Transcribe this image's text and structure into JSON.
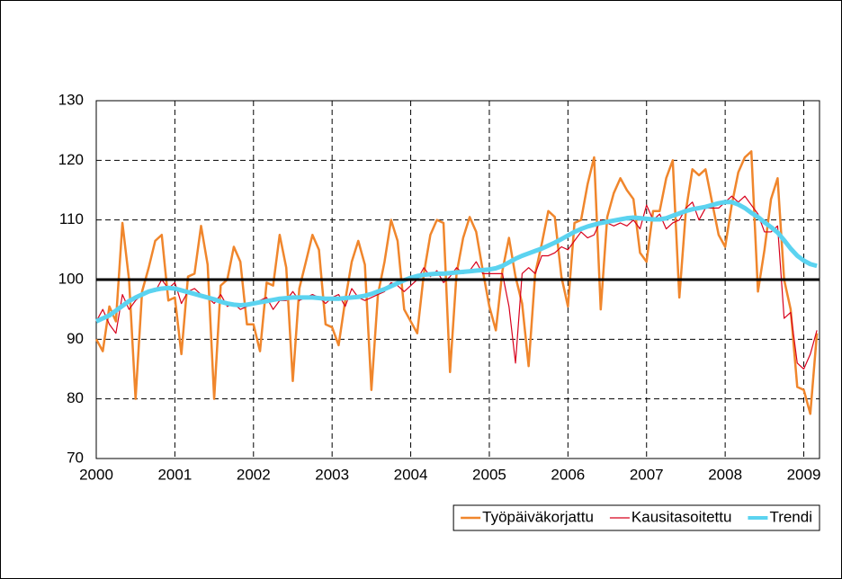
{
  "chart_data": {
    "type": "line",
    "x": [
      2000,
      2000.083,
      2000.167,
      2000.25,
      2000.333,
      2000.417,
      2000.5,
      2000.583,
      2000.667,
      2000.75,
      2000.833,
      2000.917,
      2001,
      2001.083,
      2001.167,
      2001.25,
      2001.333,
      2001.417,
      2001.5,
      2001.583,
      2001.667,
      2001.75,
      2001.833,
      2001.917,
      2002,
      2002.083,
      2002.167,
      2002.25,
      2002.333,
      2002.417,
      2002.5,
      2002.583,
      2002.667,
      2002.75,
      2002.833,
      2002.917,
      2003,
      2003.083,
      2003.167,
      2003.25,
      2003.333,
      2003.417,
      2003.5,
      2003.583,
      2003.667,
      2003.75,
      2003.833,
      2003.917,
      2004,
      2004.083,
      2004.167,
      2004.25,
      2004.333,
      2004.417,
      2004.5,
      2004.583,
      2004.667,
      2004.75,
      2004.833,
      2004.917,
      2005,
      2005.083,
      2005.167,
      2005.25,
      2005.333,
      2005.417,
      2005.5,
      2005.583,
      2005.667,
      2005.75,
      2005.833,
      2005.917,
      2006,
      2006.083,
      2006.167,
      2006.25,
      2006.333,
      2006.417,
      2006.5,
      2006.583,
      2006.667,
      2006.75,
      2006.833,
      2006.917,
      2007,
      2007.083,
      2007.167,
      2007.25,
      2007.333,
      2007.417,
      2007.5,
      2007.583,
      2007.667,
      2007.75,
      2007.833,
      2007.917,
      2008,
      2008.083,
      2008.167,
      2008.25,
      2008.333,
      2008.417,
      2008.5,
      2008.583,
      2008.667,
      2008.75,
      2008.833,
      2008.917,
      2009,
      2009.083,
      2009.167
    ],
    "series": [
      {
        "name": "Työpäiväkorjattu",
        "color": "#f0862c",
        "width": 2.5,
        "values": [
          90,
          88,
          95.5,
          93,
          109.5,
          100,
          80,
          98,
          102,
          106.5,
          107.5,
          96.5,
          97,
          87.5,
          100.5,
          101,
          109,
          102.5,
          80,
          99,
          100,
          105.5,
          103,
          92.5,
          92.5,
          88,
          99.5,
          99,
          107.5,
          102,
          83,
          98.5,
          103,
          107.5,
          105,
          92.5,
          92,
          89,
          96.5,
          103,
          106.5,
          102.5,
          81.5,
          97.5,
          103,
          110,
          106.5,
          95,
          93,
          91,
          101,
          107.5,
          110,
          109.5,
          84.5,
          101,
          107,
          110.5,
          108,
          101.5,
          95.5,
          91.5,
          101.5,
          107,
          100.5,
          96,
          85.5,
          101,
          106,
          111.5,
          110.5,
          100.5,
          95.5,
          109.5,
          110,
          116,
          120.5,
          95,
          110.5,
          114.5,
          117,
          115,
          113.5,
          104.5,
          103,
          111.5,
          111.5,
          117,
          120,
          97,
          111.5,
          118.5,
          117.5,
          118.5,
          113,
          107.5,
          105.5,
          112.5,
          118,
          120.5,
          121.5,
          98,
          105,
          113.5,
          117,
          100,
          95,
          82,
          81.5,
          77.5,
          91
        ]
      },
      {
        "name": "Kausitasoitettu",
        "color": "#d8001c",
        "width": 1.2,
        "values": [
          93,
          95,
          92.5,
          91,
          97.5,
          95,
          96.5,
          97.5,
          98,
          98,
          100,
          98.5,
          99.5,
          96,
          98,
          98.5,
          97.5,
          97,
          96,
          97.5,
          95.5,
          96,
          95,
          95.5,
          96,
          96.5,
          97,
          95,
          96.5,
          96.5,
          98,
          96.5,
          97,
          97.5,
          97,
          96,
          97,
          97.5,
          95.5,
          98.5,
          97,
          96.5,
          97,
          97.5,
          98,
          99.5,
          99,
          98,
          99,
          100,
          102,
          100.5,
          101.5,
          99.5,
          100.5,
          102,
          101,
          101.5,
          103,
          101,
          101,
          101,
          101,
          95.5,
          86,
          101,
          102,
          101,
          104,
          104,
          104.5,
          105.5,
          105,
          106.5,
          108,
          107,
          107.5,
          110,
          109.5,
          109,
          109.5,
          109,
          110,
          108.5,
          112.5,
          110,
          111,
          108.5,
          109.5,
          110,
          112,
          113,
          110,
          112,
          112,
          112,
          113,
          114,
          113,
          114,
          112.5,
          111,
          108,
          108,
          109,
          93.5,
          94.5,
          86,
          85,
          87.5,
          91.5
        ]
      },
      {
        "name": "Trendi",
        "color": "#5bd3f0",
        "width": 5,
        "values": [
          93,
          93.5,
          94,
          94.8,
          95.6,
          96.4,
          97,
          97.5,
          98,
          98.3,
          98.5,
          98.6,
          98.5,
          98.2,
          97.9,
          97.6,
          97.3,
          97,
          96.7,
          96.3,
          96,
          95.8,
          95.7,
          95.8,
          96,
          96.2,
          96.4,
          96.6,
          96.8,
          96.9,
          97,
          97,
          97,
          97,
          96.9,
          96.8,
          96.8,
          96.8,
          96.9,
          97,
          97.1,
          97.3,
          97.6,
          98,
          98.4,
          98.9,
          99.4,
          99.9,
          100.3,
          100.6,
          100.8,
          100.9,
          101,
          101,
          101.1,
          101.2,
          101.3,
          101.4,
          101.5,
          101.6,
          101.7,
          101.9,
          102.3,
          102.9,
          103.5,
          104,
          104.4,
          104.8,
          105.2,
          105.7,
          106.2,
          106.8,
          107.4,
          108,
          108.5,
          108.9,
          109.2,
          109.5,
          109.7,
          109.9,
          110.1,
          110.3,
          110.4,
          110.3,
          110.2,
          110.1,
          110.1,
          110.3,
          110.7,
          111.1,
          111.5,
          111.8,
          112,
          112.2,
          112.5,
          112.8,
          113,
          113,
          112.6,
          112,
          111.2,
          110.5,
          109.6,
          108.8,
          107.9,
          106.6,
          105.2,
          104,
          103.2,
          102.6,
          102.3
        ]
      }
    ],
    "reference_line": 100,
    "xlim": [
      2000,
      2009.2
    ],
    "xticks": [
      2000,
      2001,
      2002,
      2003,
      2004,
      2005,
      2006,
      2007,
      2008,
      2009
    ],
    "ylim": [
      70,
      130
    ],
    "yticks": [
      70,
      80,
      90,
      100,
      110,
      120,
      130
    ],
    "grid": true,
    "legend": "bottom-right"
  }
}
